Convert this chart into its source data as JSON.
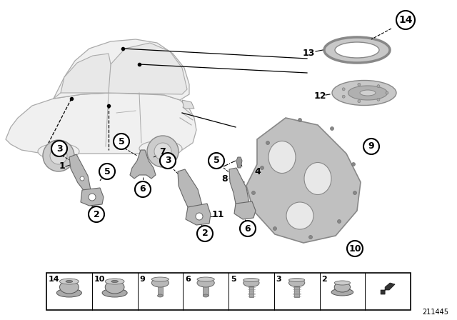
{
  "bg_color": "#ffffff",
  "diagram_number": "211445",
  "car_color": "#dddddd",
  "part_color": "#b8b8b8",
  "panel_color": "#c0c0c0",
  "ring_color": "#aaaaaa",
  "disc_color": "#b8b8b8",
  "line_color": "#000000",
  "circle_fill": "#ffffff",
  "legend_nums": [
    14,
    10,
    9,
    6,
    5,
    3,
    2,
    -1
  ],
  "label_fontsize": 9,
  "circle_label_fontsize": 9
}
